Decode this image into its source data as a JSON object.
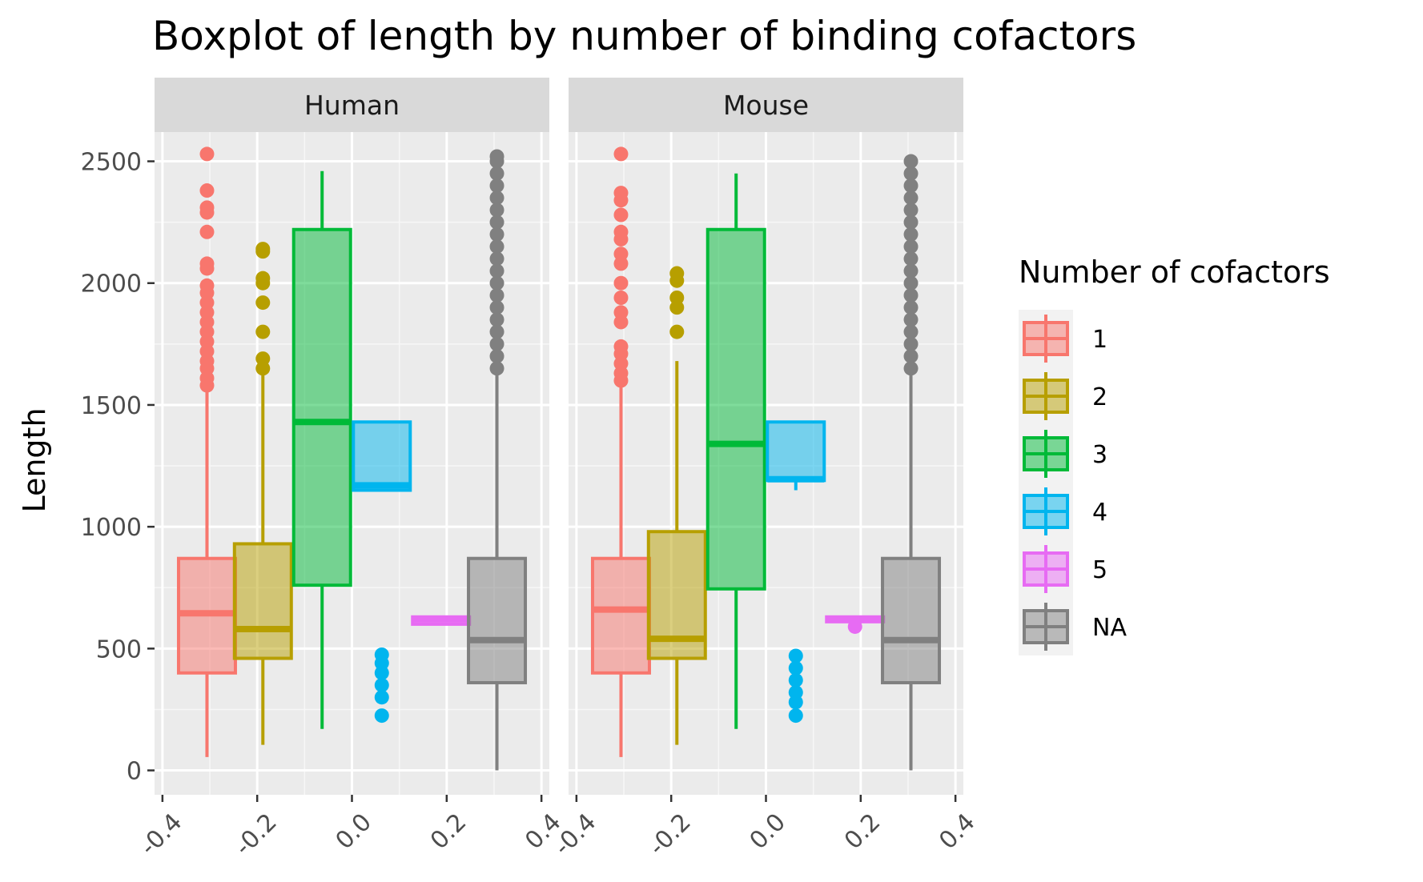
{
  "chart_data": {
    "type": "boxplot",
    "title": "Boxplot of length by number of binding cofactors",
    "xlabel": "",
    "ylabel": "Length",
    "xlim": [
      -0.4,
      0.4
    ],
    "ylim": [
      0,
      2500
    ],
    "x_ticks": [
      "-0.4",
      "-0.2",
      "0.0",
      "0.2",
      "0.4"
    ],
    "y_ticks": [
      "0",
      "500",
      "1000",
      "1500",
      "2000",
      "2500"
    ],
    "grid": true,
    "legend": {
      "title": "Number of cofactors",
      "position": "right",
      "entries": [
        {
          "label": "1",
          "color": "#F8766D"
        },
        {
          "label": "2",
          "color": "#B79F00"
        },
        {
          "label": "3",
          "color": "#00BA38"
        },
        {
          "label": "4",
          "color": "#00B5EE"
        },
        {
          "label": "5",
          "color": "#E76BF3"
        },
        {
          "label": "NA",
          "color": "#808080"
        }
      ]
    },
    "panels": [
      {
        "name": "Human",
        "boxes": [
          {
            "group": "1",
            "x_center": -0.306,
            "width": 0.12,
            "min": 55,
            "q1": 400,
            "median": 645,
            "q3": 870,
            "max": 1560,
            "outliers": [
              1580,
              1610,
              1650,
              1680,
              1720,
              1760,
              1800,
              1840,
              1880,
              1920,
              1960,
              1990,
              2060,
              2080,
              2210,
              2290,
              2310,
              2380,
              2530
            ]
          },
          {
            "group": "2",
            "x_center": -0.188,
            "width": 0.12,
            "min": 105,
            "q1": 460,
            "median": 580,
            "q3": 930,
            "max": 1630,
            "outliers": [
              1650,
              1690,
              1800,
              1920,
              2000,
              2020,
              2130,
              2140
            ]
          },
          {
            "group": "3",
            "x_center": -0.063,
            "width": 0.12,
            "min": 170,
            "q1": 760,
            "median": 1430,
            "q3": 2220,
            "max": 2460,
            "outliers": []
          },
          {
            "group": "4",
            "x_center": 0.063,
            "width": 0.12,
            "min": 1150,
            "q1": 1150,
            "median": 1170,
            "q3": 1430,
            "max": 1430,
            "outliers": [
              225,
              300,
              350,
              400,
              440,
              475
            ]
          },
          {
            "group": "5",
            "x_center": 0.188,
            "width": 0.12,
            "min": 600,
            "q1": 600,
            "median": 620,
            "q3": 630,
            "max": 630,
            "outliers": []
          },
          {
            "group": "NA",
            "x_center": 0.306,
            "width": 0.12,
            "min": 0,
            "q1": 360,
            "median": 535,
            "q3": 870,
            "max": 1630,
            "outliers": [
              1650,
              1700,
              1750,
              1800,
              1850,
              1900,
              1950,
              2000,
              2050,
              2100,
              2150,
              2200,
              2250,
              2300,
              2350,
              2400,
              2450,
              2500,
              2520
            ]
          }
        ]
      },
      {
        "name": "Mouse",
        "boxes": [
          {
            "group": "1",
            "x_center": -0.306,
            "width": 0.12,
            "min": 55,
            "q1": 400,
            "median": 660,
            "q3": 870,
            "max": 1580,
            "outliers": [
              1600,
              1630,
              1670,
              1710,
              1740,
              1840,
              1880,
              1940,
              2000,
              2080,
              2120,
              2180,
              2210,
              2280,
              2340,
              2370,
              2530
            ]
          },
          {
            "group": "2",
            "x_center": -0.188,
            "width": 0.12,
            "min": 105,
            "q1": 460,
            "median": 540,
            "q3": 980,
            "max": 1680,
            "outliers": [
              1800,
              1900,
              1940,
              2010,
              2040
            ]
          },
          {
            "group": "3",
            "x_center": -0.063,
            "width": 0.12,
            "min": 170,
            "q1": 745,
            "median": 1340,
            "q3": 2220,
            "max": 2450,
            "outliers": []
          },
          {
            "group": "4",
            "x_center": 0.063,
            "width": 0.12,
            "min": 1150,
            "q1": 1190,
            "median": 1195,
            "q3": 1430,
            "max": 1430,
            "outliers": [
              225,
              280,
              320,
              370,
              420,
              470
            ]
          },
          {
            "group": "5",
            "x_center": 0.188,
            "width": 0.12,
            "min": 610,
            "q1": 610,
            "median": 620,
            "q3": 630,
            "max": 630,
            "outliers": [
              590
            ]
          },
          {
            "group": "NA",
            "x_center": 0.306,
            "width": 0.12,
            "min": 0,
            "q1": 360,
            "median": 535,
            "q3": 870,
            "max": 1630,
            "outliers": [
              1650,
              1700,
              1750,
              1800,
              1850,
              1900,
              1950,
              2000,
              2050,
              2100,
              2150,
              2200,
              2250,
              2300,
              2350,
              2400,
              2450,
              2500
            ]
          }
        ]
      }
    ]
  }
}
